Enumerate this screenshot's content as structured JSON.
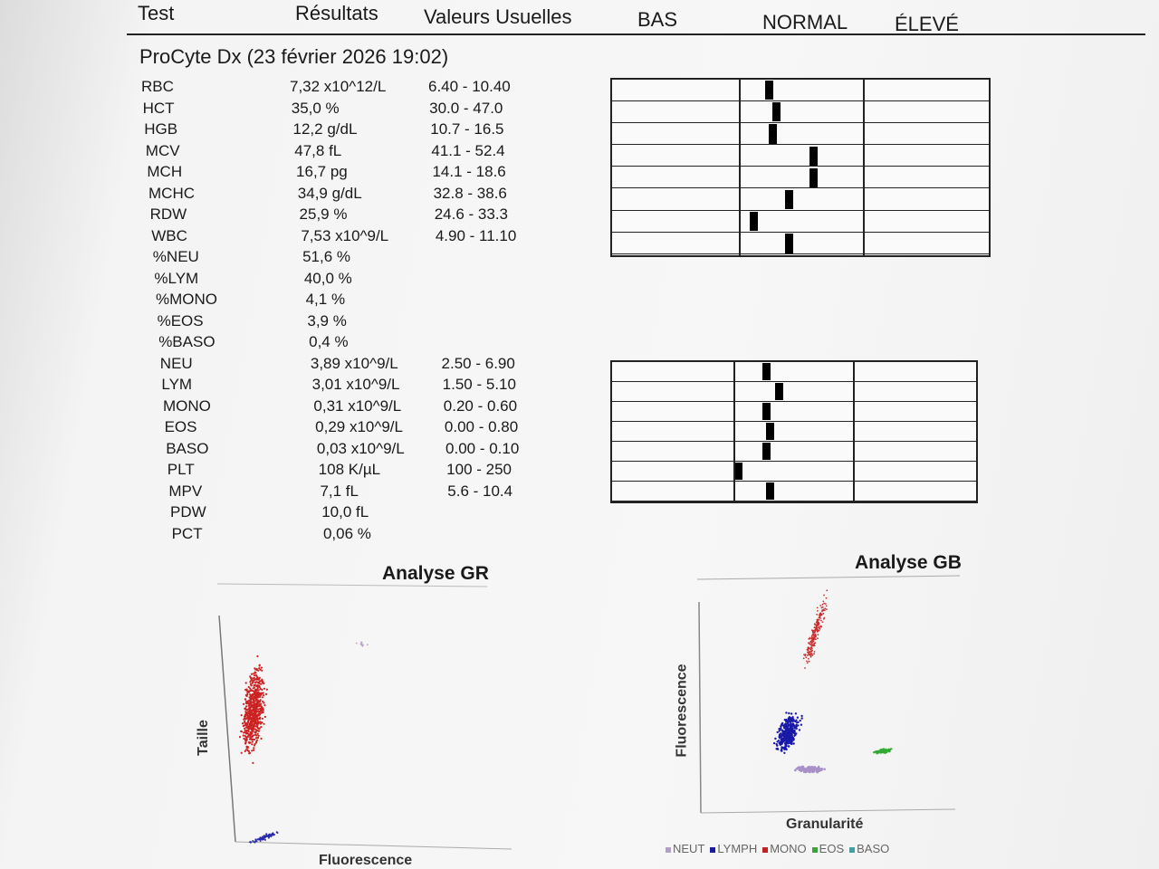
{
  "header": {
    "test": "Test",
    "results": "Résultats",
    "ranges": "Valeurs Usuelles",
    "low": "BAS",
    "normal": "NORMAL",
    "high": "ÉLEVÉ"
  },
  "instrument": "ProCyte Dx (23 février 2026 19:02)",
  "rows": [
    {
      "test": "RBC",
      "result": "7,32 x10^12/L",
      "range": "6.40 - 10.40"
    },
    {
      "test": "HCT",
      "result": "35,0 %",
      "range": "30.0 - 47.0"
    },
    {
      "test": "HGB",
      "result": "12,2 g/dL",
      "range": "10.7 - 16.5"
    },
    {
      "test": "MCV",
      "result": "47,8 fL",
      "range": "41.1 - 52.4"
    },
    {
      "test": "MCH",
      "result": "16,7 pg",
      "range": "14.1 - 18.6"
    },
    {
      "test": "MCHC",
      "result": "34,9 g/dL",
      "range": "32.8 - 38.6"
    },
    {
      "test": "RDW",
      "result": "25,9 %",
      "range": "24.6 - 33.3"
    },
    {
      "test": "WBC",
      "result": "7,53 x10^9/L",
      "range": "4.90 - 11.10"
    },
    {
      "test": "%NEU",
      "result": "51,6 %",
      "range": ""
    },
    {
      "test": "%LYM",
      "result": "40,0 %",
      "range": ""
    },
    {
      "test": "%MONO",
      "result": "4,1 %",
      "range": ""
    },
    {
      "test": "%EOS",
      "result": "3,9 %",
      "range": ""
    },
    {
      "test": "%BASO",
      "result": "0,4 %",
      "range": ""
    },
    {
      "test": "NEU",
      "result": "3,89 x10^9/L",
      "range": "2.50 - 6.90"
    },
    {
      "test": "LYM",
      "result": "3,01 x10^9/L",
      "range": "1.50 - 5.10"
    },
    {
      "test": "MONO",
      "result": "0,31 x10^9/L",
      "range": "0.20 - 0.60"
    },
    {
      "test": "EOS",
      "result": "0,29 x10^9/L",
      "range": "0.00 - 0.80"
    },
    {
      "test": "BASO",
      "result": "0,03 x10^9/L",
      "range": "0.00 - 0.10"
    },
    {
      "test": "PLT",
      "result": "108 K/µL",
      "range": "100 - 250"
    },
    {
      "test": "MPV",
      "result": "7,1 fL",
      "range": "5.6 - 10.4"
    },
    {
      "test": "PDW",
      "result": "10,0 fL",
      "range": ""
    },
    {
      "test": "PCT",
      "result": "0,06 %",
      "range": ""
    }
  ],
  "gauges_top": [
    0.24,
    0.3,
    0.27,
    0.6,
    0.6,
    0.4,
    0.12,
    0.4
  ],
  "gauges_bottom": [
    0.27,
    0.38,
    0.27,
    0.3,
    0.27,
    0.04,
    0.3
  ],
  "plot_rbc": {
    "title": "Analyse GR",
    "ylabel": "Taille",
    "xlabel": "Fluorescence"
  },
  "plot_wbc": {
    "title": "Analyse GB",
    "ylabel": "Fluorescence",
    "xlabel": "Granularité"
  },
  "legend": [
    {
      "label": "NEUT",
      "color": "#b0a0c8"
    },
    {
      "label": "LYMPH",
      "color": "#1a1aa0"
    },
    {
      "label": "MONO",
      "color": "#c02020"
    },
    {
      "label": "EOS",
      "color": "#40a040"
    },
    {
      "label": "BASO",
      "color": "#40a0a0"
    }
  ],
  "colors": {
    "rbc": "#cc2222",
    "platelet": "#2a2ab0",
    "neut": "#a890c8",
    "lymph": "#1a1aa8",
    "mono": "#c83030",
    "eos": "#33aa33"
  }
}
